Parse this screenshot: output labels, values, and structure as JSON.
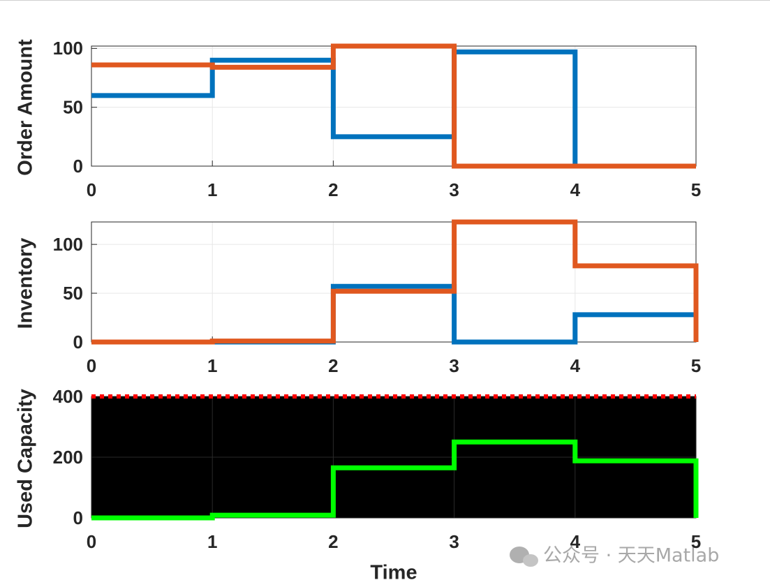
{
  "chart_data": [
    {
      "type": "stairs",
      "ylabel": "Order Amount",
      "x": [
        0,
        1,
        2,
        3,
        4,
        5
      ],
      "xlim": [
        0,
        5
      ],
      "xticks": [
        0,
        1,
        2,
        3,
        4,
        5
      ],
      "ylim": [
        0,
        102
      ],
      "yticks": [
        0,
        50,
        100
      ],
      "grid": true,
      "background": "#ffffff",
      "series": [
        {
          "color": "#0072bd",
          "values": [
            60,
            90,
            25,
            97,
            0,
            0
          ]
        },
        {
          "color": "#e0581f",
          "values": [
            86,
            84,
            102,
            0,
            0,
            0
          ]
        }
      ]
    },
    {
      "type": "stairs",
      "ylabel": "Inventory",
      "x": [
        0,
        1,
        2,
        3,
        4,
        5
      ],
      "xlim": [
        0,
        5
      ],
      "xticks": [
        0,
        1,
        2,
        3,
        4,
        5
      ],
      "ylim": [
        0,
        123
      ],
      "yticks": [
        0,
        50,
        100
      ],
      "grid": true,
      "background": "#ffffff",
      "series": [
        {
          "color": "#0072bd",
          "values": [
            0,
            0,
            57,
            0,
            28,
            0
          ]
        },
        {
          "color": "#e0581f",
          "values": [
            0,
            1,
            52,
            123,
            78,
            0
          ]
        }
      ]
    },
    {
      "type": "stairs",
      "ylabel": "Used Capacity",
      "xlabel": "Time",
      "x": [
        0,
        1,
        2,
        3,
        4,
        5
      ],
      "xlim": [
        0,
        5
      ],
      "xticks": [
        0,
        1,
        2,
        3,
        4,
        5
      ],
      "ylim": [
        0,
        400
      ],
      "yticks": [
        0,
        200,
        400
      ],
      "grid": true,
      "background": "#000000",
      "series": [
        {
          "color": "#ff0000",
          "linestyle": "dotted",
          "values": [
            400,
            400,
            400,
            400,
            400,
            400
          ]
        },
        {
          "color": "#00ff00",
          "values": [
            0,
            9,
            165,
            250,
            188,
            0
          ]
        }
      ]
    }
  ],
  "watermark": "公众号 · 天天Matlab"
}
